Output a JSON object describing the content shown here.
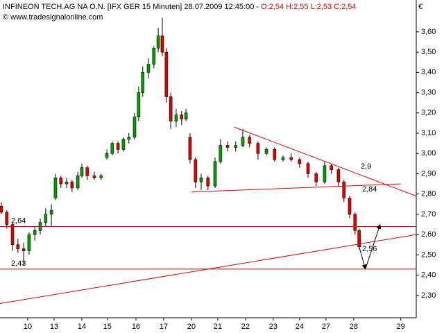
{
  "header": {
    "instrument": "INFINEON TECH.AG NA O.N. [IFX GER  15 Minuten] 28.07.2009 12:45:00 -",
    "ohlc": [
      "O:2,54",
      "H:2,55",
      "L:2,53",
      "C:2,54"
    ],
    "copyright": "© www.tradesignalonline.com",
    "currency": "€"
  },
  "chart_data": {
    "type": "candlestick",
    "x": [
      -0.97,
      -0.77,
      -0.56,
      -0.36,
      -0.15,
      0.05,
      0.26,
      0.46,
      0.66,
      0.87,
      1.02,
      1.22,
      1.43,
      1.63,
      1.84,
      1.99,
      2.19,
      2.45,
      2.7,
      2.91,
      3.11,
      3.32,
      3.52,
      3.72,
      3.93,
      4.08,
      4.23,
      4.44,
      4.64,
      4.8,
      4.95,
      5.1,
      5.26,
      5.46,
      5.66,
      5.82,
      5.97,
      6.17,
      6.38,
      6.63,
      6.89,
      7.09,
      7.35,
      7.65,
      7.91,
      8.16,
      8.47,
      8.78,
      9.08,
      9.39,
      9.69,
      10.0,
      10.31,
      10.61,
      10.92,
      11.17,
      11.43,
      11.63,
      11.84,
      12.04,
      12.19
    ],
    "open": [
      2.74,
      2.71,
      2.65,
      2.55,
      2.53,
      2.52,
      2.6,
      2.62,
      2.66,
      2.7,
      2.78,
      2.88,
      2.85,
      2.86,
      2.83,
      2.89,
      2.93,
      2.89,
      2.88,
      2.98,
      3.0,
      3.05,
      3.02,
      3.07,
      3.08,
      3.18,
      3.3,
      3.4,
      3.44,
      3.52,
      3.58,
      3.5,
      3.28,
      3.16,
      3.19,
      3.17,
      3.08,
      2.97,
      2.86,
      2.88,
      2.84,
      2.96,
      3.04,
      3.03,
      3.04,
      3.08,
      3.05,
      3.0,
      3.02,
      2.97,
      2.98,
      2.97,
      2.95,
      2.9,
      2.86,
      2.94,
      2.92,
      2.86,
      2.78,
      2.7,
      2.62
    ],
    "high": [
      2.76,
      2.72,
      2.66,
      2.58,
      2.56,
      2.61,
      2.64,
      2.68,
      2.73,
      2.75,
      2.9,
      2.89,
      2.88,
      2.87,
      2.91,
      2.95,
      2.94,
      2.91,
      2.9,
      3.02,
      3.06,
      3.06,
      3.08,
      3.1,
      3.2,
      3.33,
      3.43,
      3.47,
      3.53,
      3.62,
      3.67,
      3.52,
      3.3,
      3.22,
      3.21,
      3.22,
      3.1,
      2.98,
      2.9,
      2.89,
      2.98,
      3.07,
      3.06,
      3.06,
      3.12,
      3.09,
      3.06,
      3.03,
      3.03,
      2.99,
      3.0,
      2.98,
      2.96,
      2.91,
      2.96,
      2.95,
      2.93,
      2.87,
      2.79,
      2.71,
      2.63
    ],
    "low": [
      2.7,
      2.63,
      2.52,
      2.51,
      2.45,
      2.5,
      2.57,
      2.6,
      2.64,
      2.64,
      2.77,
      2.83,
      2.83,
      2.81,
      2.82,
      2.88,
      2.87,
      2.87,
      2.87,
      2.97,
      2.99,
      3.0,
      3.01,
      3.05,
      3.07,
      3.16,
      3.28,
      3.37,
      3.42,
      3.5,
      3.48,
      3.25,
      3.12,
      3.13,
      3.14,
      3.16,
      2.95,
      2.83,
      2.82,
      2.82,
      2.83,
      2.95,
      3.01,
      3.01,
      3.03,
      3.03,
      2.97,
      2.99,
      2.96,
      2.96,
      2.96,
      2.93,
      2.88,
      2.84,
      2.85,
      2.9,
      2.84,
      2.76,
      2.68,
      2.6,
      2.53
    ],
    "close": [
      2.71,
      2.65,
      2.55,
      2.53,
      2.52,
      2.6,
      2.62,
      2.66,
      2.7,
      2.72,
      2.88,
      2.85,
      2.86,
      2.83,
      2.89,
      2.93,
      2.89,
      2.88,
      2.89,
      3.0,
      3.05,
      3.02,
      3.07,
      3.08,
      3.18,
      3.3,
      3.4,
      3.44,
      3.52,
      3.58,
      3.5,
      3.28,
      3.16,
      3.19,
      3.17,
      3.2,
      2.97,
      2.86,
      2.88,
      2.84,
      2.96,
      3.04,
      3.03,
      3.04,
      3.08,
      3.05,
      3.0,
      3.02,
      2.97,
      2.98,
      2.97,
      2.95,
      2.9,
      2.86,
      2.94,
      2.92,
      2.86,
      2.78,
      2.7,
      2.62,
      2.54
    ],
    "up_color": "#00a000",
    "down_color": "#e00000",
    "line_color": "#e00000",
    "xlim": [
      -1.02,
      14.29
    ],
    "ylim": [
      2.19,
      3.757
    ],
    "xticks": [
      {
        "value": 0,
        "label": "10"
      },
      {
        "value": 0.97,
        "label": "13"
      },
      {
        "value": 1.99,
        "label": "14"
      },
      {
        "value": 2.93,
        "label": "15"
      },
      {
        "value": 3.98,
        "label": "16"
      },
      {
        "value": 5.0,
        "label": "17"
      },
      {
        "value": 6.02,
        "label": "20"
      },
      {
        "value": 6.99,
        "label": "21"
      },
      {
        "value": 8.01,
        "label": "22"
      },
      {
        "value": 9.03,
        "label": "23"
      },
      {
        "value": 10.0,
        "label": "24"
      },
      {
        "value": 10.97,
        "label": "27"
      },
      {
        "value": 11.99,
        "label": "28"
      },
      {
        "value": 13.72,
        "label": "29"
      }
    ],
    "yticks": [
      {
        "value": 2.3,
        "label": "2,30"
      },
      {
        "value": 2.4,
        "label": "2,40"
      },
      {
        "value": 2.5,
        "label": "2,50"
      },
      {
        "value": 2.6,
        "label": "2,60"
      },
      {
        "value": 2.7,
        "label": "2,70"
      },
      {
        "value": 2.8,
        "label": "2,80"
      },
      {
        "value": 2.9,
        "label": "2,90"
      },
      {
        "value": 3.0,
        "label": "3,00"
      },
      {
        "value": 3.1,
        "label": "3,10"
      },
      {
        "value": 3.2,
        "label": "3,20"
      },
      {
        "value": 3.3,
        "label": "3,30"
      },
      {
        "value": 3.4,
        "label": "3,40"
      },
      {
        "value": 3.5,
        "label": "3,50"
      },
      {
        "value": 3.6,
        "label": "3,60"
      }
    ],
    "hlines": [
      {
        "value": 2.64,
        "label": "2,64"
      },
      {
        "value": 2.43,
        "label": "2,43"
      }
    ],
    "trendlines": [
      {
        "x": [
          7.6,
          14.29
        ],
        "y": [
          3.13,
          2.79
        ],
        "label": "2,9"
      },
      {
        "x": [
          6.02,
          13.72
        ],
        "y": [
          2.81,
          2.85
        ],
        "label": "2,84"
      },
      {
        "x": [
          -1.02,
          14.29
        ],
        "y": [
          2.26,
          2.6
        ],
        "label": "2,56"
      }
    ],
    "arrow": {
      "x": [
        12.19,
        12.42,
        12.96
      ],
      "y": [
        2.54,
        2.43,
        2.65
      ]
    }
  }
}
